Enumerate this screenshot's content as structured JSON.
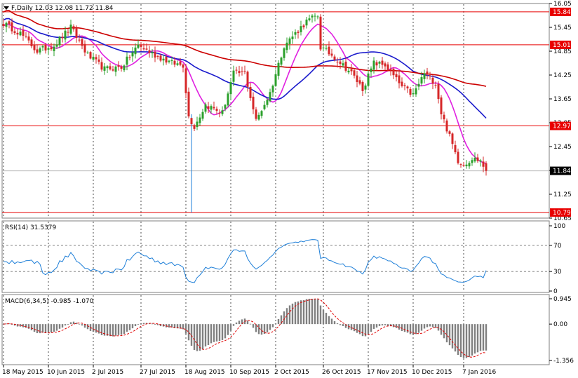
{
  "chart_data": [
    {
      "type": "candlestick",
      "header": "F,Daily  12.03 12.08 11.72 11.84",
      "symbol": "F",
      "timeframe": "Daily",
      "ohlc_last": [
        12.03,
        12.08,
        11.72,
        11.84
      ],
      "y_ticks": [
        16.05,
        15.45,
        14.85,
        14.25,
        13.65,
        13.05,
        12.45,
        11.85,
        11.25,
        10.65
      ],
      "ylim": [
        10.65,
        16.05
      ],
      "x_labels": [
        "18 May 2015",
        "10 Jun 2015",
        "2 Jul 2015",
        "27 Jul 2015",
        "18 Aug 2015",
        "10 Sep 2015",
        "2 Oct 2015",
        "26 Oct 2015",
        "17 Nov 2015",
        "10 Dec 2015",
        "7 Jan 2016"
      ],
      "x_label_index": [
        0,
        16,
        32,
        49,
        65,
        81,
        97,
        114,
        130,
        146,
        164
      ],
      "levels": [
        {
          "value": 15.84,
          "label": "15.84",
          "color": "#e80000"
        },
        {
          "value": 15.01,
          "label": "15.01",
          "color": "#e80000"
        },
        {
          "value": 12.97,
          "label": "12.97",
          "color": "#e80000"
        },
        {
          "value": 10.79,
          "label": "10.79",
          "color": "#e80000"
        }
      ],
      "current": {
        "value": 11.84,
        "label": "11.84",
        "color": "#000000"
      },
      "anchors": [
        [
          0,
          15.55
        ],
        [
          6,
          15.3
        ],
        [
          12,
          14.85
        ],
        [
          18,
          15.0
        ],
        [
          24,
          15.45
        ],
        [
          30,
          14.75
        ],
        [
          36,
          14.4
        ],
        [
          42,
          14.45
        ],
        [
          48,
          15.0
        ],
        [
          54,
          14.75
        ],
        [
          60,
          14.55
        ],
        [
          64,
          14.5
        ],
        [
          66,
          13.2
        ],
        [
          68,
          12.95
        ],
        [
          72,
          13.5
        ],
        [
          78,
          13.3
        ],
        [
          82,
          14.3
        ],
        [
          86,
          14.3
        ],
        [
          90,
          13.1
        ],
        [
          95,
          13.8
        ],
        [
          100,
          15.0
        ],
        [
          108,
          15.6
        ],
        [
          112,
          15.75
        ],
        [
          113,
          14.95
        ],
        [
          118,
          14.7
        ],
        [
          124,
          14.3
        ],
        [
          128,
          13.9
        ],
        [
          132,
          14.55
        ],
        [
          136,
          14.5
        ],
        [
          142,
          13.95
        ],
        [
          146,
          13.75
        ],
        [
          150,
          14.3
        ],
        [
          154,
          14.05
        ],
        [
          156,
          13.3
        ],
        [
          158,
          12.9
        ],
        [
          162,
          12.1
        ],
        [
          164,
          12.0
        ],
        [
          167,
          12.15
        ],
        [
          170,
          12.1
        ],
        [
          172,
          11.84
        ]
      ],
      "spikes": [
        {
          "index": 67,
          "low": 10.79
        }
      ],
      "candle_colors": {
        "up": "#2ca02c",
        "down": "#d62728"
      },
      "ma": [
        {
          "period": 10,
          "color": "#e020e0",
          "ends_at": 172
        },
        {
          "period": 34,
          "color": "#1a1acc",
          "ends_at": 172
        },
        {
          "period": 100,
          "color": "#cc0000",
          "ends_at": 172
        }
      ]
    },
    {
      "type": "line",
      "header": "RSI(14) 31.5379",
      "name": "RSI(14)",
      "last": 31.5379,
      "levels": [
        70,
        30
      ],
      "y_ticks": [
        "100",
        "70",
        "30",
        "0"
      ],
      "ylim": [
        0,
        100
      ],
      "color": "#1e7fd8"
    },
    {
      "type": "bar",
      "header": "MACD(6,34,5) -0.985 -1.070",
      "name": "MACD(6,34,5)",
      "values_last": [
        -0.985,
        -1.07
      ],
      "y_ticks": [
        "0.945",
        "0.00",
        "-1.356"
      ],
      "ylim": [
        -1.356,
        0.945
      ],
      "bar_color": "#808080",
      "signal_color": "#e00000"
    }
  ]
}
